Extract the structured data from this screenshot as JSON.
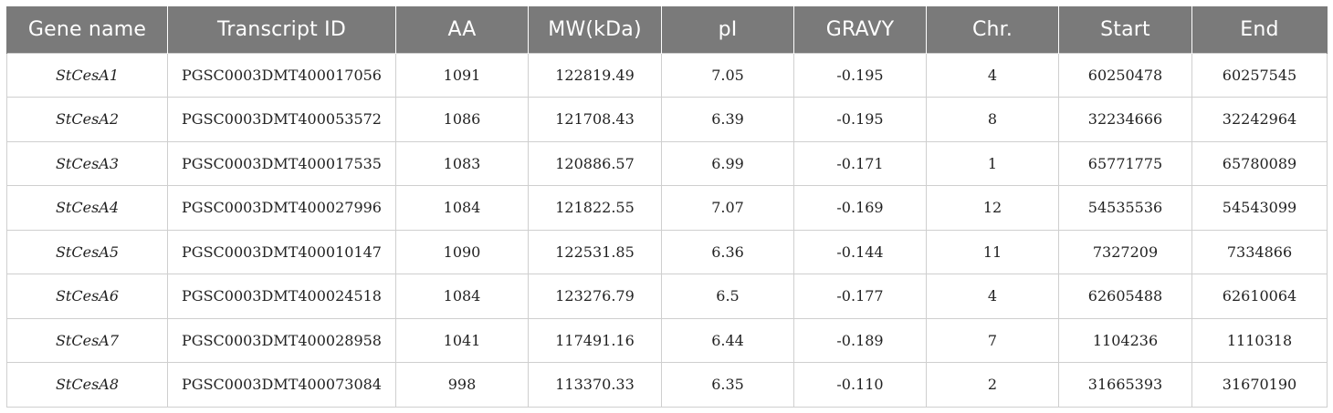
{
  "table": {
    "headers": [
      "Gene name",
      "Transcript ID",
      "AA",
      "MW(kDa)",
      "pI",
      "GRAVY",
      "Chr.",
      "Start",
      "End"
    ],
    "rows": [
      [
        "StCesA1",
        "PGSC0003DMT400017056",
        "1091",
        "122819.49",
        "7.05",
        "-0.195",
        "4",
        "60250478",
        "60257545"
      ],
      [
        "StCesA2",
        "PGSC0003DMT400053572",
        "1086",
        "121708.43",
        "6.39",
        "-0.195",
        "8",
        "32234666",
        "32242964"
      ],
      [
        "StCesA3",
        "PGSC0003DMT400017535",
        "1083",
        "120886.57",
        "6.99",
        "-0.171",
        "1",
        "65771775",
        "65780089"
      ],
      [
        "StCesA4",
        "PGSC0003DMT400027996",
        "1084",
        "121822.55",
        "7.07",
        "-0.169",
        "12",
        "54535536",
        "54543099"
      ],
      [
        "StCesA5",
        "PGSC0003DMT400010147",
        "1090",
        "122531.85",
        "6.36",
        "-0.144",
        "11",
        "7327209",
        "7334866"
      ],
      [
        "StCesA6",
        "PGSC0003DMT400024518",
        "1084",
        "123276.79",
        "6.5",
        "-0.177",
        "4",
        "62605488",
        "62610064"
      ],
      [
        "StCesA7",
        "PGSC0003DMT400028958",
        "1041",
        "117491.16",
        "6.44",
        "-0.189",
        "7",
        "1104236",
        "1110318"
      ],
      [
        "StCesA8",
        "PGSC0003DMT400073084",
        "998",
        "113370.33",
        "6.35",
        "-0.110",
        "2",
        "31665393",
        "31670190"
      ]
    ]
  },
  "colors": {
    "header_background": "#7a7a7a",
    "header_text": "#ffffff",
    "grid_lines": "#cfcfcf"
  }
}
